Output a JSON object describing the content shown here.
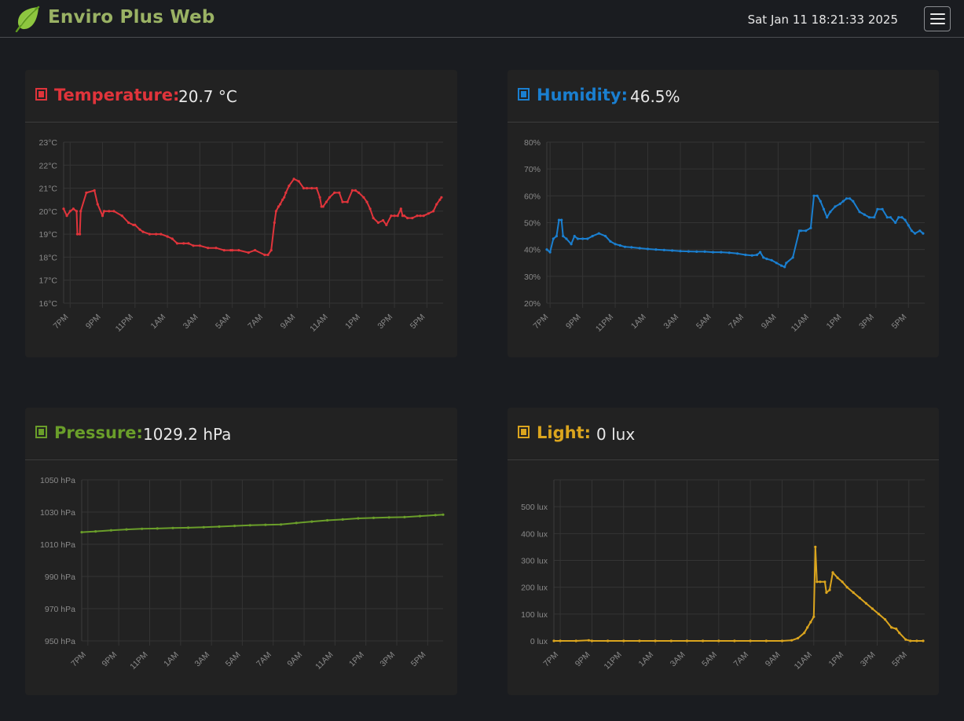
{
  "app": {
    "title": "Enviro Plus Web",
    "datetime": "Sat Jan 11 18:21:33 2025",
    "menu_icon": "hamburger-icon",
    "logo_icon": "leaf-icon"
  },
  "colors": {
    "background": "#1a1c20",
    "brand": "#9ab264",
    "temperature": "#e0343b",
    "humidity": "#1a7fd0",
    "pressure": "#6a9e2a",
    "light": "#dba51e"
  },
  "cards": {
    "temperature": {
      "label": "Temperature:",
      "value": "20.7 °C"
    },
    "humidity": {
      "label": "Humidity:",
      "value": "46.5%"
    },
    "pressure": {
      "label": "Pressure:",
      "value": "1029.2 hPa"
    },
    "light": {
      "label": "Light:",
      "value": "0 lux"
    }
  },
  "chart_data": [
    {
      "id": "temperature",
      "type": "line",
      "color": "#e0343b",
      "y_ticks": [
        "23°C",
        "22°C",
        "21°C",
        "20°C",
        "19°C",
        "18°C",
        "17°C",
        "16°C"
      ],
      "ylim": [
        16,
        23
      ],
      "x_ticks": [
        "7PM",
        "9PM",
        "11PM",
        "1AM",
        "3AM",
        "5AM",
        "7AM",
        "9AM",
        "11AM",
        "1PM",
        "3PM",
        "5PM"
      ],
      "x_hours": [
        19,
        21,
        23,
        25,
        27,
        29,
        31,
        33,
        35,
        37,
        39,
        41
      ],
      "xlim": [
        18.6,
        42.0
      ],
      "grid": true,
      "x": [
        18.6,
        18.8,
        19.0,
        19.2,
        19.4,
        19.45,
        19.6,
        19.65,
        20.0,
        20.5,
        20.7,
        21.0,
        21.1,
        21.4,
        21.7,
        22.2,
        22.6,
        22.9,
        23.0,
        23.3,
        23.5,
        23.9,
        24.3,
        24.6,
        25.0,
        25.3,
        25.6,
        26.0,
        26.3,
        26.6,
        27.0,
        27.5,
        28.0,
        28.5,
        28.9,
        29.0,
        29.4,
        30.0,
        30.4,
        31.0,
        31.2,
        31.4,
        31.6,
        31.7,
        31.85,
        31.95,
        32.1,
        32.2,
        32.3,
        32.5,
        32.8,
        33.1,
        33.4,
        33.6,
        33.9,
        34.2,
        34.4,
        34.5,
        34.6,
        34.8,
        35.0,
        35.3,
        35.6,
        35.8,
        36.1,
        36.4,
        36.6,
        36.8,
        37.1,
        37.3,
        37.5,
        37.7,
        38.0,
        38.3,
        38.5,
        38.8,
        39.0,
        39.2,
        39.4,
        39.5,
        39.6,
        39.8,
        40.1,
        40.4,
        40.6,
        40.8,
        41.1,
        41.4,
        41.6,
        41.8,
        41.9
      ],
      "y": [
        20.1,
        19.8,
        20.0,
        20.1,
        20.0,
        19.0,
        19.0,
        20.0,
        20.8,
        20.9,
        20.3,
        19.8,
        20.0,
        20.0,
        20.0,
        19.8,
        19.5,
        19.4,
        19.4,
        19.2,
        19.1,
        19.0,
        19.0,
        19.0,
        18.9,
        18.8,
        18.6,
        18.6,
        18.6,
        18.5,
        18.5,
        18.4,
        18.4,
        18.3,
        18.3,
        18.3,
        18.3,
        18.2,
        18.3,
        18.1,
        18.1,
        18.3,
        19.5,
        20.0,
        20.2,
        20.3,
        20.5,
        20.6,
        20.8,
        21.1,
        21.4,
        21.3,
        21.0,
        21.0,
        21.0,
        21.0,
        20.6,
        20.2,
        20.2,
        20.4,
        20.6,
        20.8,
        20.8,
        20.4,
        20.4,
        20.9,
        20.9,
        20.8,
        20.6,
        20.4,
        20.1,
        19.7,
        19.5,
        19.6,
        19.4,
        19.8,
        19.8,
        19.8,
        20.1,
        19.8,
        19.8,
        19.7,
        19.7,
        19.8,
        19.8,
        19.8,
        19.9,
        20.0,
        20.3,
        20.5,
        20.6
      ]
    },
    {
      "id": "humidity",
      "type": "line",
      "color": "#1a7fd0",
      "y_ticks": [
        "80%",
        "70%",
        "60%",
        "50%",
        "40%",
        "30%",
        "20%"
      ],
      "ylim": [
        20,
        80
      ],
      "x_ticks": [
        "7PM",
        "9PM",
        "11PM",
        "1AM",
        "3AM",
        "5AM",
        "7AM",
        "9AM",
        "11AM",
        "1PM",
        "3PM",
        "5PM"
      ],
      "x_hours": [
        19,
        21,
        23,
        25,
        27,
        29,
        31,
        33,
        35,
        37,
        39,
        41
      ],
      "xlim": [
        18.8,
        42.0
      ],
      "grid": true,
      "x": [
        18.8,
        19.0,
        19.2,
        19.4,
        19.55,
        19.7,
        19.8,
        20.0,
        20.3,
        20.5,
        20.7,
        21.0,
        21.3,
        21.6,
        22.0,
        22.4,
        22.7,
        23.0,
        23.3,
        23.6,
        24.0,
        24.5,
        25.0,
        25.5,
        26.0,
        26.5,
        27.0,
        27.5,
        28.0,
        28.5,
        29.0,
        29.5,
        30.0,
        30.5,
        31.0,
        31.4,
        31.7,
        31.9,
        32.1,
        32.3,
        32.6,
        32.9,
        33.2,
        33.4,
        33.5,
        33.9,
        34.3,
        34.4,
        34.7,
        35.0,
        35.2,
        35.4,
        35.6,
        35.8,
        36.0,
        36.2,
        36.5,
        36.8,
        37.0,
        37.2,
        37.4,
        37.6,
        38.0,
        38.3,
        38.6,
        38.9,
        39.1,
        39.4,
        39.7,
        39.9,
        40.2,
        40.4,
        40.6,
        40.8,
        41.0,
        41.2,
        41.4,
        41.7,
        41.9
      ],
      "y": [
        40,
        39,
        44,
        45,
        51,
        51,
        45,
        44,
        42,
        45,
        44,
        44,
        44,
        45,
        46,
        45,
        43,
        42,
        41.5,
        41,
        40.8,
        40.5,
        40.2,
        40,
        39.8,
        39.6,
        39.4,
        39.3,
        39.2,
        39.2,
        39.0,
        39.0,
        38.8,
        38.5,
        38.0,
        37.8,
        38.0,
        39.0,
        37.0,
        36.5,
        36.0,
        35.0,
        34.0,
        33.5,
        35.0,
        37.0,
        47,
        47,
        47,
        48,
        60,
        60,
        58,
        55,
        52,
        54,
        56,
        57,
        58,
        59,
        59,
        58,
        54,
        53,
        52,
        52,
        55,
        55,
        52,
        52,
        50,
        52,
        52,
        51,
        49,
        47,
        46,
        47,
        46
      ]
    },
    {
      "id": "pressure",
      "type": "line",
      "color": "#6a9e2a",
      "y_ticks": [
        "1050 hPa",
        "1030 hPa",
        "1010 hPa",
        "990 hPa",
        "970 hPa",
        "950 hPa"
      ],
      "ylim": [
        950,
        1050
      ],
      "x_ticks": [
        "7PM",
        "9PM",
        "11PM",
        "1AM",
        "3AM",
        "5AM",
        "7AM",
        "9AM",
        "11AM",
        "1PM",
        "3PM",
        "5PM"
      ],
      "x_hours": [
        19,
        21,
        23,
        25,
        27,
        29,
        31,
        33,
        35,
        37,
        39,
        41
      ],
      "xlim": [
        18.6,
        42.0
      ],
      "grid": true,
      "x": [
        18.6,
        19.5,
        20.5,
        21.5,
        22.5,
        23.5,
        24.5,
        25.5,
        26.5,
        27.5,
        28.5,
        29.5,
        30.5,
        31.5,
        32.5,
        33.5,
        34.5,
        35.5,
        36.5,
        37.5,
        38.5,
        39.5,
        40.5,
        41.5,
        42.0
      ],
      "y": [
        1017.5,
        1018.0,
        1018.7,
        1019.2,
        1019.6,
        1019.8,
        1020.1,
        1020.3,
        1020.6,
        1021.0,
        1021.4,
        1021.8,
        1022.1,
        1022.3,
        1023.2,
        1024.1,
        1024.9,
        1025.4,
        1026.1,
        1026.4,
        1026.7,
        1026.9,
        1027.5,
        1028.1,
        1028.4
      ]
    },
    {
      "id": "light",
      "type": "line",
      "color": "#dba51e",
      "y_ticks": [
        "500 lux",
        "400 lux",
        "300 lux",
        "200 lux",
        "100 lux",
        "0 lux"
      ],
      "ylim": [
        0,
        500
      ],
      "x_ticks": [
        "7PM",
        "9PM",
        "11PM",
        "1AM",
        "3AM",
        "5AM",
        "7AM",
        "9AM",
        "11AM",
        "1PM",
        "3PM",
        "5PM"
      ],
      "x_hours": [
        19,
        21,
        23,
        25,
        27,
        29,
        31,
        33,
        35,
        37,
        39,
        41
      ],
      "xlim": [
        18.6,
        42.0
      ],
      "grid": true,
      "x": [
        18.6,
        19.0,
        20.0,
        20.8,
        21.0,
        22.0,
        23.0,
        24.0,
        25.0,
        26.0,
        27.0,
        28.0,
        29.0,
        30.0,
        31.0,
        32.0,
        33.0,
        33.6,
        34.0,
        34.4,
        34.6,
        34.8,
        35.0,
        35.1,
        35.2,
        35.4,
        35.7,
        35.8,
        36.0,
        36.2,
        36.5,
        36.8,
        37.1,
        37.5,
        37.9,
        38.3,
        38.7,
        39.1,
        39.5,
        39.9,
        40.2,
        40.4,
        40.8,
        41.1,
        41.5,
        41.9
      ],
      "y": [
        0,
        0,
        0,
        2,
        0,
        0,
        0,
        0,
        0,
        0,
        0,
        0,
        0,
        0,
        0,
        0,
        0,
        2,
        10,
        30,
        50,
        70,
        90,
        350,
        220,
        220,
        220,
        180,
        190,
        255,
        235,
        220,
        200,
        180,
        160,
        140,
        120,
        100,
        80,
        50,
        45,
        30,
        5,
        0,
        0,
        0
      ]
    }
  ]
}
